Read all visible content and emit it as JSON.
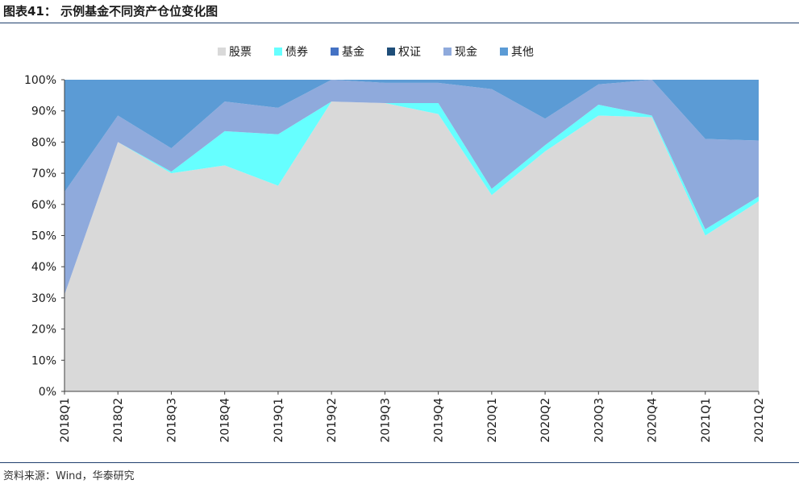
{
  "figure": {
    "title": "图表41： 示例基金不同资产仓位变化图",
    "source": "资料来源：Wind，华泰研究"
  },
  "chart_data": {
    "type": "area",
    "stacked": true,
    "categories": [
      "2018Q1",
      "2018Q2",
      "2018Q3",
      "2018Q4",
      "2019Q1",
      "2019Q2",
      "2019Q3",
      "2019Q4",
      "2020Q1",
      "2020Q2",
      "2020Q3",
      "2020Q4",
      "2021Q1",
      "2021Q2"
    ],
    "yticks": [
      "0%",
      "10%",
      "20%",
      "30%",
      "40%",
      "50%",
      "60%",
      "70%",
      "80%",
      "90%",
      "100%"
    ],
    "ylim": [
      0,
      100
    ],
    "legend_position": "top",
    "grid": false,
    "series": [
      {
        "name": "股票",
        "color": "#d9d9d9",
        "values": [
          31,
          80,
          70,
          72.5,
          66,
          93,
          92.5,
          89,
          63,
          77,
          88.5,
          88,
          50,
          61
        ]
      },
      {
        "name": "债券",
        "color": "#66ffff",
        "values": [
          0,
          0,
          0.5,
          11,
          16.5,
          0,
          0,
          3.5,
          2,
          2,
          3.5,
          0.5,
          2,
          1.5
        ]
      },
      {
        "name": "基金",
        "color": "#4472c4",
        "values": [
          0,
          0,
          0,
          0,
          0,
          0,
          0,
          0,
          0,
          0,
          0,
          0,
          0,
          0
        ]
      },
      {
        "name": "权证",
        "color": "#1f4e79",
        "values": [
          0,
          0,
          0,
          0,
          0,
          0,
          0,
          0,
          0,
          0,
          0,
          0,
          0,
          0
        ]
      },
      {
        "name": "现金",
        "color": "#8faadc",
        "values": [
          33,
          8.5,
          7.5,
          9.5,
          8.5,
          7,
          6.5,
          6.5,
          32,
          8.5,
          6.5,
          11.5,
          29,
          18
        ]
      },
      {
        "name": "其他",
        "color": "#5b9bd5",
        "values": [
          36,
          11.5,
          22,
          7,
          9,
          0,
          1,
          1,
          3,
          12.5,
          1.5,
          0,
          19,
          19.5
        ]
      }
    ]
  }
}
